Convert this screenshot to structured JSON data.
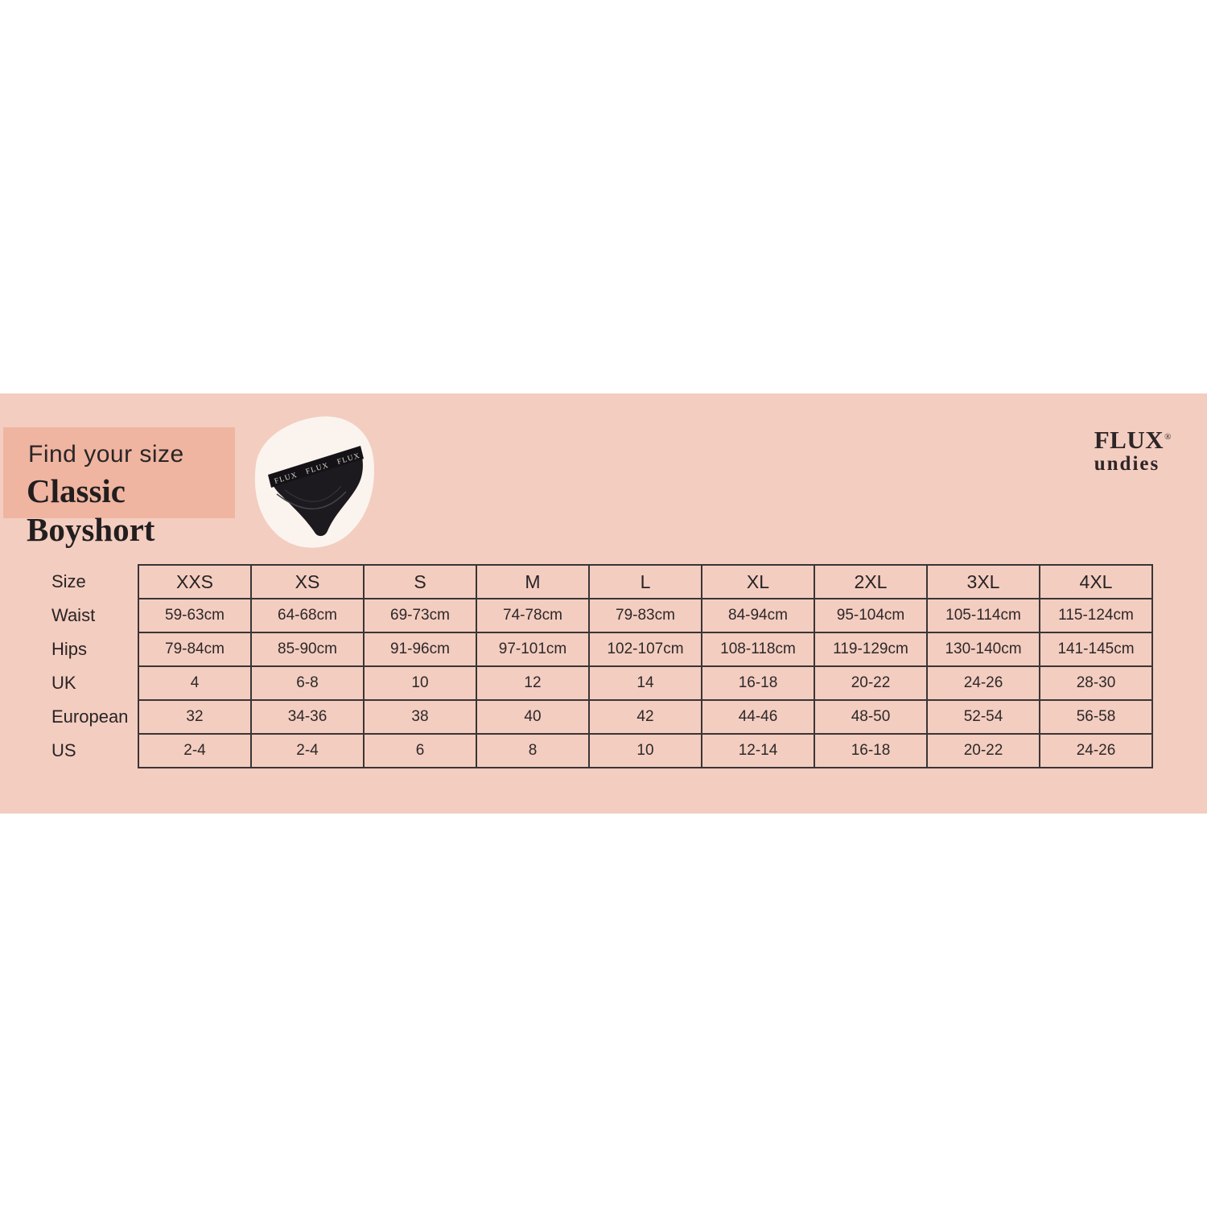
{
  "brand": {
    "name": "FLUX",
    "registered": "®",
    "sub": "undies"
  },
  "header": {
    "subtitle": "Find your size",
    "title": "Classic Boyshort"
  },
  "product": {
    "image_name": "classic-boyshort-black-underwear",
    "waistband_text": "FLUX"
  },
  "size_table": {
    "corner_label": "Size",
    "columns": [
      "XXS",
      "XS",
      "S",
      "M",
      "L",
      "XL",
      "2XL",
      "3XL",
      "4XL"
    ],
    "rows": [
      {
        "label": "Waist",
        "values": [
          "59-63cm",
          "64-68cm",
          "69-73cm",
          "74-78cm",
          "79-83cm",
          "84-94cm",
          "95-104cm",
          "105-114cm",
          "115-124cm"
        ]
      },
      {
        "label": "Hips",
        "values": [
          "79-84cm",
          "85-90cm",
          "91-96cm",
          "97-101cm",
          "102-107cm",
          "108-118cm",
          "119-129cm",
          "130-140cm",
          "141-145cm"
        ]
      },
      {
        "label": "UK",
        "values": [
          "4",
          "6-8",
          "10",
          "12",
          "14",
          "16-18",
          "20-22",
          "24-26",
          "28-30"
        ]
      },
      {
        "label": "European",
        "values": [
          "32",
          "34-36",
          "38",
          "40",
          "42",
          "44-46",
          "48-50",
          "52-54",
          "56-58"
        ]
      },
      {
        "label": "US",
        "values": [
          "2-4",
          "2-4",
          "6",
          "8",
          "10",
          "12-14",
          "16-18",
          "20-22",
          "24-26"
        ]
      }
    ]
  },
  "colors": {
    "band": "#f3cdc0",
    "panel": "#efb5a1",
    "blob": "#fbf4ee",
    "ink": "#2d2829",
    "border": "#3a3536",
    "underwear": "#1c1a1e"
  }
}
